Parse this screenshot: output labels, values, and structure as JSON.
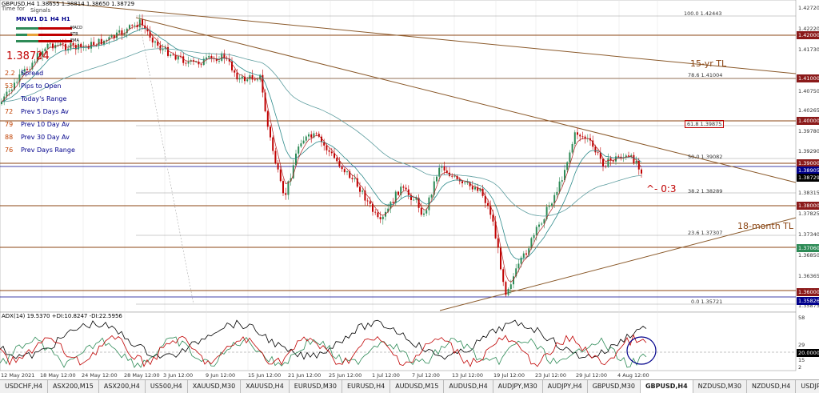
{
  "header": {
    "symbol_line": "GBPUSD,H4  1.38655 1.38814 1.38650 1.38729",
    "subtitle": "Time for",
    "signals": "Signals"
  },
  "timeframes": [
    "MN",
    "W1",
    "D1",
    "H4",
    "H1"
  ],
  "indicator_rows": [
    "MACD",
    "STR",
    "EMA"
  ],
  "current_price": "1.38724",
  "stats": [
    {
      "value": "2.2",
      "label": "Spread"
    },
    {
      "value": "53",
      "label": "Pips to Open"
    },
    {
      "value": "",
      "label": "Today's Range"
    },
    {
      "value": "72",
      "label": "Prev 5 Days Av"
    },
    {
      "value": "79",
      "label": "Prev 10 Day Av"
    },
    {
      "value": "88",
      "label": "Prev 30 Day Av"
    },
    {
      "value": "76",
      "label": "Prev Days Range"
    }
  ],
  "price_axis": [
    "1.42720",
    "1.42220",
    "1.41730",
    "1.40750",
    "1.40265",
    "1.39780",
    "1.39290",
    "1.38315",
    "1.37825",
    "1.37340",
    "1.36850",
    "1.36365",
    "1.35875"
  ],
  "price_tags": [
    {
      "label": "1.42000",
      "bg": "#8b1a1a",
      "fg": "#ffffff"
    },
    {
      "label": "1.41000",
      "bg": "#8b1a1a",
      "fg": "#ffffff"
    },
    {
      "label": "1.40000",
      "bg": "#8b1a1a",
      "fg": "#ffffff"
    },
    {
      "label": "1.39000",
      "bg": "#8b1a1a",
      "fg": "#ffffff"
    },
    {
      "label": "1.38905",
      "bg": "#00008b",
      "fg": "#ffffff"
    },
    {
      "label": "1.38729",
      "bg": "#000000",
      "fg": "#ffffff"
    },
    {
      "label": "1.38000",
      "bg": "#8b1a1a",
      "fg": "#ffffff"
    },
    {
      "label": "1.37060",
      "bg": "#2e8b57",
      "fg": "#ffffff"
    },
    {
      "label": "1.36000",
      "bg": "#8b1a1a",
      "fg": "#ffffff"
    },
    {
      "label": "1.35826",
      "bg": "#00008b",
      "fg": "#ffffff"
    }
  ],
  "fib_levels": [
    {
      "label": "100.0  1.42443"
    },
    {
      "label": "78.6  1.41004"
    },
    {
      "label": "61.8  1.39875"
    },
    {
      "label": "50.0  1.39082"
    },
    {
      "label": "38.2  1.38289"
    },
    {
      "label": "23.6  1.37307"
    },
    {
      "label": "0.0  1.35721"
    }
  ],
  "annotations": {
    "tl_15yr": "15-yr TL",
    "tl_18month": "18-month TL",
    "ratio": "^- 0:3"
  },
  "adx": {
    "header": "ADX(14) 19.5370 +DI:10.8247 -DI:22.5956",
    "scale": [
      "58",
      "29",
      "20.0000",
      "15",
      "2"
    ]
  },
  "dates": [
    "12 May 2021",
    "18 May 12:00",
    "24 May 12:00",
    "28 May 12:00",
    "3 Jun 12:00",
    "9 Jun 12:00",
    "15 Jun 12:00",
    "21 Jun 12:00",
    "25 Jun 12:00",
    "1 Jul 12:00",
    "7 Jul 12:00",
    "13 Jul 12:00",
    "19 Jul 12:00",
    "23 Jul 12:00",
    "29 Jul 12:00",
    "4 Aug 12:00"
  ],
  "tabs": [
    "USDCHF,H4",
    "ASX200,M15",
    "ASX200,H4",
    "US500,H4",
    "XAUUSD,M30",
    "XAUUSD,H4",
    "EURUSD,M30",
    "EURUSD,H4",
    "AUDUSD,M15",
    "AUDUSD,H4",
    "AUDJPY,M30",
    "AUDJPY,H4",
    "GBPUSD,M30",
    "GBPUSD,H4",
    "NZDUSD,M30",
    "NZDUSD,H4",
    "USDJPY,M30",
    "US"
  ],
  "active_tab": "GBPUSD,H4",
  "colors": {
    "up": "#2e8b57",
    "down": "#c00000",
    "sr": "#8b4513",
    "accent": "#d00000"
  }
}
